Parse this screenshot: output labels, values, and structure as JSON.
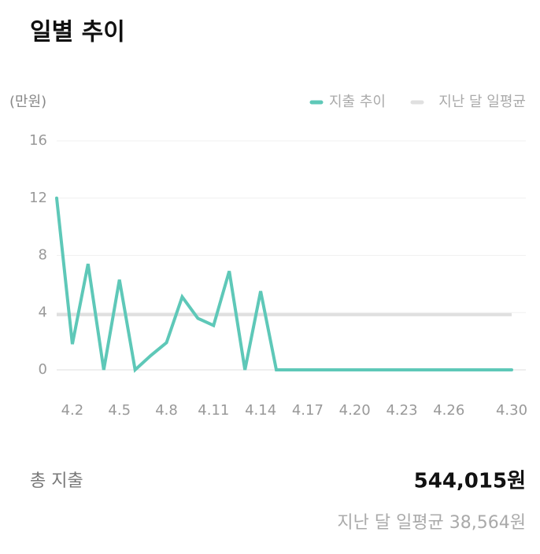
{
  "chart_data": {
    "type": "line",
    "title": "일별 추이",
    "y_unit": "(만원)",
    "categories": [
      null,
      "4.2",
      null,
      null,
      "4.5",
      null,
      null,
      "4.8",
      null,
      null,
      "4.11",
      null,
      null,
      "4.14",
      null,
      null,
      "4.17",
      null,
      null,
      "4.20",
      null,
      null,
      "4.23",
      null,
      null,
      "4.26",
      null,
      null,
      null,
      "4.30"
    ],
    "series": [
      {
        "name": "지출 추이",
        "color": "#5ec8b8",
        "values": [
          12,
          1.8,
          7.4,
          0,
          6.3,
          0,
          1,
          1.9,
          5.1,
          3.6,
          3.1,
          6.9,
          0,
          5.5,
          0,
          0,
          0,
          0,
          0,
          0,
          0,
          0,
          0,
          0,
          0,
          0,
          0,
          0,
          0,
          0
        ]
      }
    ],
    "average_line": {
      "name": "지난 달 일평균",
      "color": "#e0e0e0",
      "value": 3.8564
    },
    "ylim": [
      0,
      16
    ],
    "yticks": [
      0,
      4,
      8,
      12,
      16
    ],
    "grid": true,
    "summary": {
      "total_label": "총 지출",
      "total_value": "544,015원",
      "average_text": "지난 달 일평균 38,564원"
    }
  }
}
